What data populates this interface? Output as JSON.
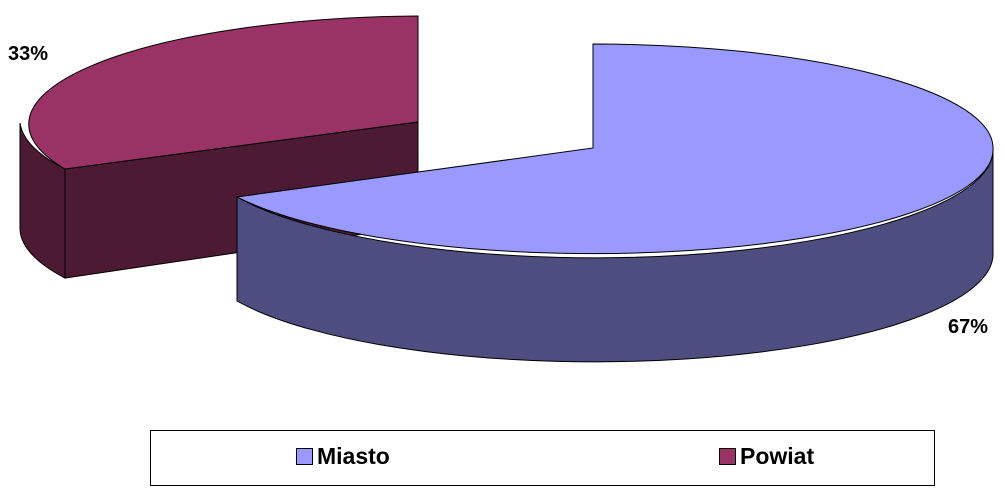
{
  "chart_data": {
    "type": "pie",
    "categories": [
      "Miasto",
      "Powiat"
    ],
    "values": [
      67,
      33
    ],
    "value_labels": [
      "67%",
      "33%"
    ],
    "colors": {
      "Miasto": {
        "top": "#9999ff",
        "side": "#4d4d80"
      },
      "Powiat": {
        "top": "#993366",
        "side": "#4d1a33"
      }
    },
    "legend_position": "bottom",
    "style": "3d-exploded"
  },
  "legend": {
    "items": [
      {
        "label": "Miasto"
      },
      {
        "label": "Powiat"
      }
    ]
  }
}
